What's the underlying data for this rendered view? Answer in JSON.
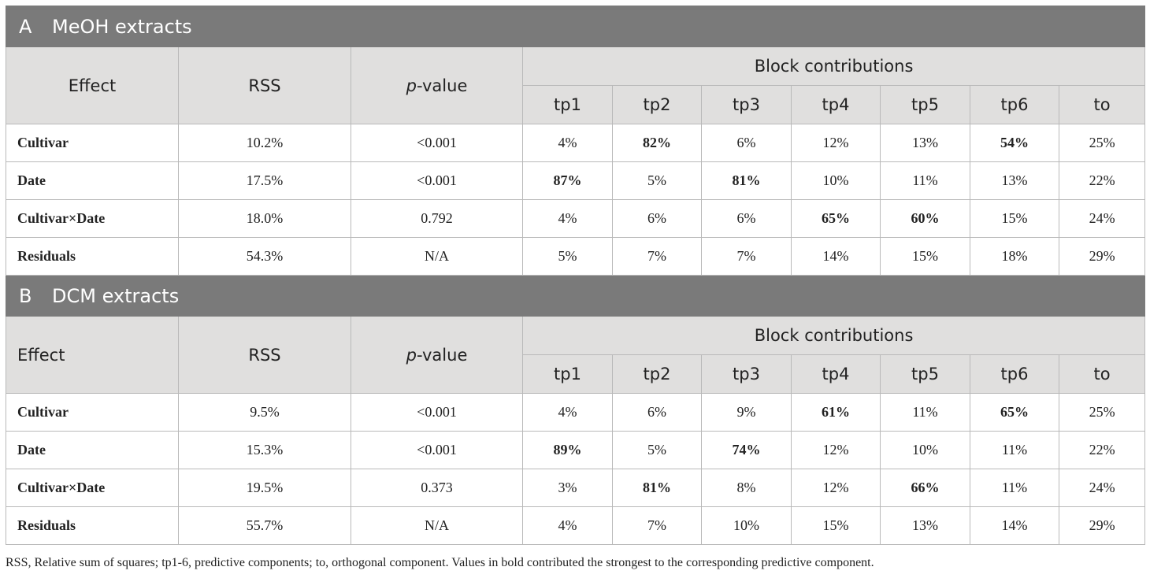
{
  "sections": [
    {
      "letter": "A",
      "title": "MeOH extracts",
      "header": {
        "effect": "Effect",
        "rss": "RSS",
        "p_italic": "p",
        "p_rest": "-value",
        "block": "Block contributions",
        "components": [
          "tp1",
          "tp2",
          "tp3",
          "tp4",
          "tp5",
          "tp6",
          "to"
        ]
      },
      "rows": [
        {
          "effect": "Cultivar",
          "rss": "10.2%",
          "p": "<0.001",
          "cells": [
            "4%",
            "82%",
            "6%",
            "12%",
            "13%",
            "54%",
            "25%"
          ],
          "bold": [
            false,
            true,
            false,
            false,
            false,
            true,
            false
          ]
        },
        {
          "effect": "Date",
          "rss": "17.5%",
          "p": "<0.001",
          "cells": [
            "87%",
            "5%",
            "81%",
            "10%",
            "11%",
            "13%",
            "22%"
          ],
          "bold": [
            true,
            false,
            true,
            false,
            false,
            false,
            false
          ]
        },
        {
          "effect": "Cultivar×Date",
          "rss": "18.0%",
          "p": "0.792",
          "cells": [
            "4%",
            "6%",
            "6%",
            "65%",
            "60%",
            "15%",
            "24%"
          ],
          "bold": [
            false,
            false,
            false,
            true,
            true,
            false,
            false
          ]
        },
        {
          "effect": "Residuals",
          "rss": "54.3%",
          "p": "N/A",
          "cells": [
            "5%",
            "7%",
            "7%",
            "14%",
            "15%",
            "18%",
            "29%"
          ],
          "bold": [
            false,
            false,
            false,
            false,
            false,
            false,
            false
          ]
        }
      ]
    },
    {
      "letter": "B",
      "title": "DCM extracts",
      "header": {
        "effect": "Effect",
        "rss": "RSS",
        "p_italic": "p",
        "p_rest": "-value",
        "block": "Block contributions",
        "components": [
          "tp1",
          "tp2",
          "tp3",
          "tp4",
          "tp5",
          "tp6",
          "to"
        ]
      },
      "rows": [
        {
          "effect": "Cultivar",
          "rss": "9.5%",
          "p": "<0.001",
          "cells": [
            "4%",
            "6%",
            "9%",
            "61%",
            "11%",
            "65%",
            "25%"
          ],
          "bold": [
            false,
            false,
            false,
            true,
            false,
            true,
            false
          ]
        },
        {
          "effect": "Date",
          "rss": "15.3%",
          "p": "<0.001",
          "cells": [
            "89%",
            "5%",
            "74%",
            "12%",
            "10%",
            "11%",
            "22%"
          ],
          "bold": [
            true,
            false,
            true,
            false,
            false,
            false,
            false
          ]
        },
        {
          "effect": "Cultivar×Date",
          "rss": "19.5%",
          "p": "0.373",
          "cells": [
            "3%",
            "81%",
            "8%",
            "12%",
            "66%",
            "11%",
            "24%"
          ],
          "bold": [
            false,
            true,
            false,
            false,
            true,
            false,
            false
          ]
        },
        {
          "effect": "Residuals",
          "rss": "55.7%",
          "p": "N/A",
          "cells": [
            "4%",
            "7%",
            "10%",
            "15%",
            "13%",
            "14%",
            "29%"
          ],
          "bold": [
            false,
            false,
            false,
            false,
            false,
            false,
            false
          ]
        }
      ]
    }
  ],
  "footnote": "RSS, Relative sum of squares; tp1-6, predictive components; to, orthogonal component. Values in bold contributed the strongest to the corresponding predictive component."
}
